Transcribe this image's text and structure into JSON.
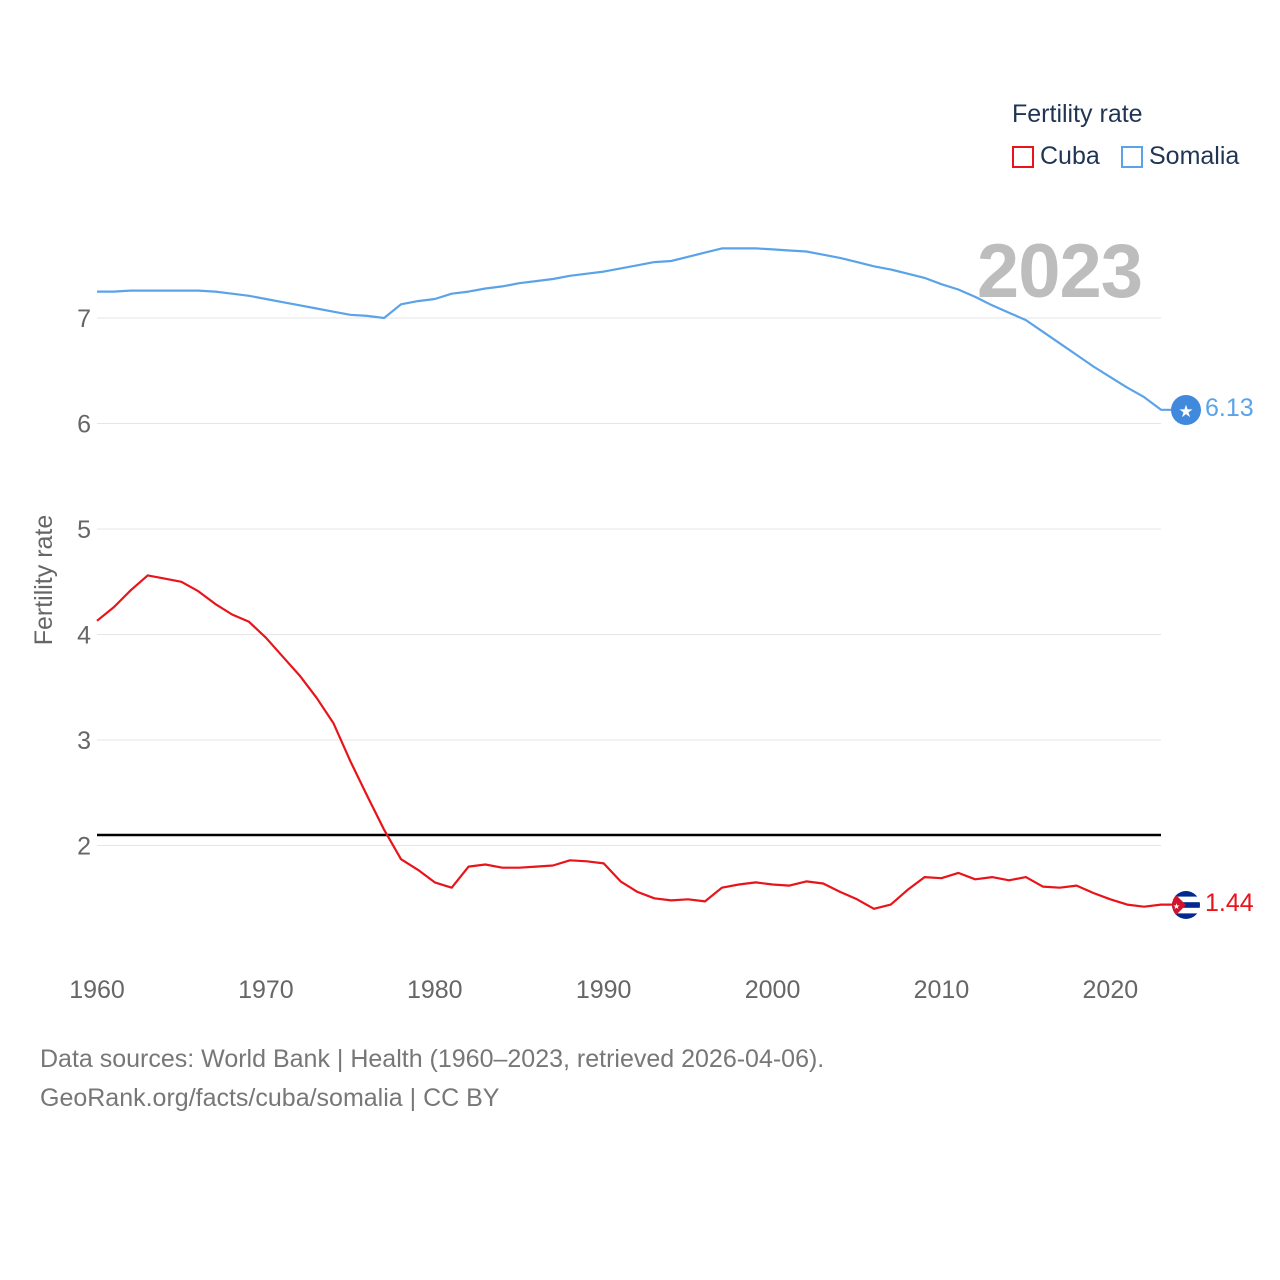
{
  "legend": {
    "title": "Fertility rate",
    "items": [
      {
        "label": "Cuba",
        "color": "#e8141a"
      },
      {
        "label": "Somalia",
        "color": "#5ba3e8"
      }
    ]
  },
  "year_label": "2023",
  "footer": {
    "line1": "Data sources: World Bank | Health (1960–2023, retrieved 2026-04-06).",
    "line2": "GeoRank.org/facts/cuba/somalia | CC BY"
  },
  "chart_data": {
    "type": "line",
    "title": "",
    "xlabel": "",
    "ylabel": "Fertility rate",
    "xlim": [
      1960,
      2023
    ],
    "ylim": [
      1,
      8
    ],
    "x_ticks": [
      1960,
      1970,
      1980,
      1990,
      2000,
      2010,
      2020
    ],
    "y_ticks": [
      2,
      3,
      4,
      5,
      6,
      7
    ],
    "reference_line": {
      "y": 2.1,
      "color": "#000000"
    },
    "x": [
      1960,
      1961,
      1962,
      1963,
      1964,
      1965,
      1966,
      1967,
      1968,
      1969,
      1970,
      1971,
      1972,
      1973,
      1974,
      1975,
      1976,
      1977,
      1978,
      1979,
      1980,
      1981,
      1982,
      1983,
      1984,
      1985,
      1986,
      1987,
      1988,
      1989,
      1990,
      1991,
      1992,
      1993,
      1994,
      1995,
      1996,
      1997,
      1998,
      1999,
      2000,
      2001,
      2002,
      2003,
      2004,
      2005,
      2006,
      2007,
      2008,
      2009,
      2010,
      2011,
      2012,
      2013,
      2014,
      2015,
      2016,
      2017,
      2018,
      2019,
      2020,
      2021,
      2022,
      2023
    ],
    "series": [
      {
        "name": "Cuba",
        "color": "#e8141a",
        "end_label": "1.44",
        "values": [
          4.13,
          4.26,
          4.42,
          4.56,
          4.53,
          4.5,
          4.41,
          4.29,
          4.19,
          4.12,
          3.97,
          3.79,
          3.61,
          3.4,
          3.16,
          2.8,
          2.47,
          2.15,
          1.87,
          1.77,
          1.65,
          1.6,
          1.8,
          1.82,
          1.79,
          1.79,
          1.8,
          1.81,
          1.86,
          1.85,
          1.83,
          1.66,
          1.56,
          1.5,
          1.48,
          1.49,
          1.47,
          1.6,
          1.63,
          1.65,
          1.63,
          1.62,
          1.66,
          1.64,
          1.56,
          1.49,
          1.4,
          1.44,
          1.58,
          1.7,
          1.69,
          1.74,
          1.68,
          1.7,
          1.67,
          1.7,
          1.61,
          1.6,
          1.62,
          1.55,
          1.49,
          1.44,
          1.42,
          1.44
        ]
      },
      {
        "name": "Somalia",
        "color": "#5ba3e8",
        "end_label": "6.13",
        "values": [
          7.25,
          7.25,
          7.26,
          7.26,
          7.26,
          7.26,
          7.26,
          7.25,
          7.23,
          7.21,
          7.18,
          7.15,
          7.12,
          7.09,
          7.06,
          7.03,
          7.02,
          7.0,
          7.13,
          7.16,
          7.18,
          7.23,
          7.25,
          7.28,
          7.3,
          7.33,
          7.35,
          7.37,
          7.4,
          7.42,
          7.44,
          7.47,
          7.5,
          7.53,
          7.54,
          7.58,
          7.62,
          7.66,
          7.66,
          7.66,
          7.65,
          7.64,
          7.63,
          7.6,
          7.57,
          7.53,
          7.49,
          7.46,
          7.42,
          7.38,
          7.32,
          7.27,
          7.2,
          7.12,
          7.05,
          6.98,
          6.87,
          6.76,
          6.65,
          6.54,
          6.44,
          6.34,
          6.25,
          6.13
        ]
      }
    ]
  }
}
